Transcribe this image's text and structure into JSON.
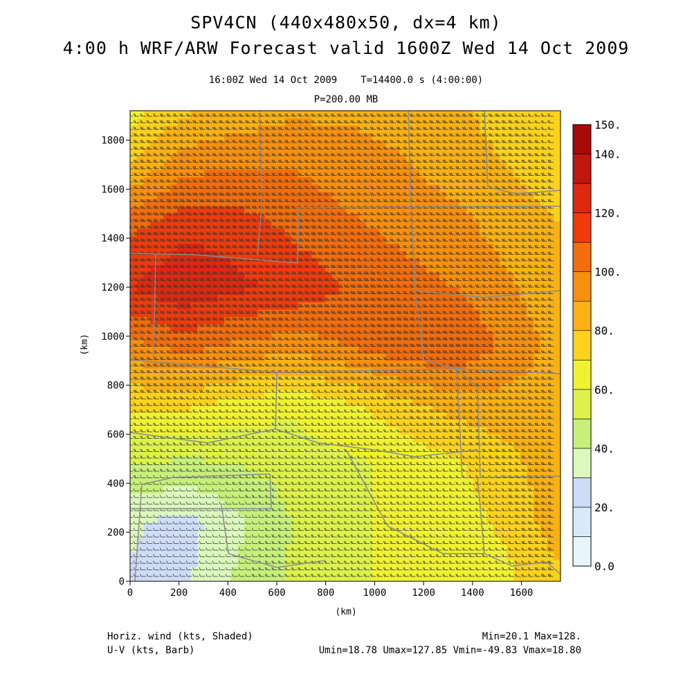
{
  "header": {
    "title_line1": "SPV4CN (440x480x50, dx=4 km)",
    "title_line2": "4:00 h WRF/ARW Forecast valid 1600Z Wed 14 Oct 2009",
    "valid_time": "16:00Z Wed 14 Oct 2009",
    "model_time": "T=14400.0 s (4:00:00)",
    "level": "P=200.00 MB"
  },
  "footer": {
    "field1": "Horiz. wind (kts, Shaded)",
    "field2": "U-V (kts, Barb)",
    "minmax": "Min=20.1 Max=128.",
    "uv_stats": "Umin=18.78 Umax=127.85 Vmin=-49.83 Vmax=18.80"
  },
  "chart_data": {
    "type": "heatmap",
    "xlabel": "(km)",
    "ylabel": "(km)",
    "xlim": [
      0,
      1760
    ],
    "ylim": [
      0,
      1920
    ],
    "x_ticks": [
      0,
      200,
      400,
      600,
      800,
      1000,
      1200,
      1400,
      1600
    ],
    "y_ticks": [
      0,
      200,
      400,
      600,
      800,
      1000,
      1200,
      1400,
      1600,
      1800
    ],
    "colorbar": {
      "levels": [
        0,
        10,
        20,
        30,
        40,
        50,
        60,
        70,
        80,
        90,
        100,
        110,
        120,
        130,
        140,
        150
      ],
      "labels": [
        "0.0",
        "20.",
        "40.",
        "60.",
        "80.",
        "100.",
        "120.",
        "140.",
        "150."
      ],
      "colors": [
        "#e8f6fc",
        "#d8eafa",
        "#cfdcf7",
        "#dcf8bc",
        "#c6f07a",
        "#dcf24a",
        "#f0f230",
        "#fbd21c",
        "#f9b114",
        "#f7900f",
        "#f26d0c",
        "#ee3b0c",
        "#dc2910",
        "#c01610",
        "#a80808"
      ]
    },
    "wind_speed_grid_kts": {
      "x_km": [
        0,
        220,
        440,
        660,
        880,
        1100,
        1320,
        1540,
        1760
      ],
      "y_km": [
        1920,
        1680,
        1440,
        1200,
        960,
        720,
        480,
        240,
        0
      ],
      "values": [
        [
          66,
          78,
          84,
          88,
          88,
          86,
          82,
          76,
          70
        ],
        [
          82,
          98,
          100,
          100,
          96,
          92,
          86,
          80,
          76
        ],
        [
          108,
          118,
          116,
          108,
          102,
          98,
          94,
          86,
          80
        ],
        [
          120,
          128,
          122,
          118,
          110,
          104,
          100,
          92,
          82
        ],
        [
          96,
          104,
          98,
          94,
          100,
          108,
          110,
          98,
          86
        ],
        [
          72,
          72,
          66,
          62,
          68,
          76,
          84,
          86,
          82
        ],
        [
          50,
          48,
          50,
          54,
          58,
          62,
          68,
          76,
          88
        ],
        [
          32,
          26,
          38,
          50,
          58,
          62,
          66,
          72,
          86
        ],
        [
          28,
          28,
          42,
          52,
          58,
          62,
          64,
          68,
          78
        ]
      ]
    },
    "min": 20.1,
    "max": 128,
    "umin": 18.78,
    "umax": 127.85,
    "vmin": -49.83,
    "vmax": 18.8
  }
}
